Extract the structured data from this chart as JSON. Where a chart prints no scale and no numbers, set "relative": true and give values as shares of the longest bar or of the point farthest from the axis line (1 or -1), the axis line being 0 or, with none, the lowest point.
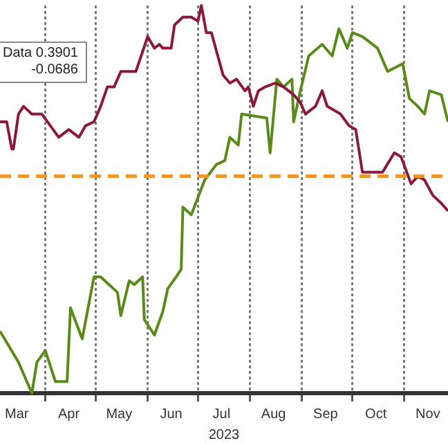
{
  "chart_data": {
    "type": "line",
    "relative": true,
    "xlabel": "2023",
    "grid": "x",
    "legend": false,
    "marker": "none",
    "line_style": "solid",
    "annotations": [
      "Data 0.3901",
      "-0.0686"
    ],
    "xlim": [
      "2023-03-05",
      "2023-11-27"
    ],
    "xticks": [
      {
        "value": "2023-03-15",
        "label": "Mar"
      },
      {
        "value": "2023-04-01",
        "label": null
      },
      {
        "value": "2023-04-15",
        "label": "Apr"
      },
      {
        "value": "2023-05-01",
        "label": null
      },
      {
        "value": "2023-05-15",
        "label": "May"
      },
      {
        "value": "2023-06-01",
        "label": null
      },
      {
        "value": "2023-06-15",
        "label": "Jun"
      },
      {
        "value": "2023-07-01",
        "label": null
      },
      {
        "value": "2023-07-15",
        "label": "Jul"
      },
      {
        "value": "2023-08-01",
        "label": null
      },
      {
        "value": "2023-08-15",
        "label": "Aug"
      },
      {
        "value": "2023-09-01",
        "label": null
      },
      {
        "value": "2023-09-15",
        "label": "Sep"
      },
      {
        "value": "2023-10-01",
        "label": null
      },
      {
        "value": "2023-10-15",
        "label": "Oct"
      },
      {
        "value": "2023-11-01",
        "label": null
      },
      {
        "value": "2023-11-15",
        "label": "Nov"
      }
    ],
    "ref_lines": [
      {
        "axis": "y",
        "value": 0.56,
        "color": "#f0962a",
        "line_style": "dashed"
      }
    ],
    "series": [
      {
        "color": "#8b1a3a",
        "x": [
          "2023-03-05",
          "2023-03-09",
          "2023-03-12",
          "2023-03-13",
          "2023-03-16",
          "2023-03-19",
          "2023-03-24",
          "2023-03-30",
          "2023-04-04",
          "2023-04-09",
          "2023-04-15",
          "2023-04-21",
          "2023-04-25",
          "2023-04-30",
          "2023-05-04",
          "2023-05-08",
          "2023-05-12",
          "2023-05-16",
          "2023-05-25",
          "2023-06-01",
          "2023-06-05",
          "2023-06-08",
          "2023-06-10",
          "2023-06-15",
          "2023-06-17",
          "2023-06-22",
          "2023-06-27",
          "2023-07-01",
          "2023-07-03",
          "2023-07-06",
          "2023-07-09",
          "2023-07-16",
          "2023-07-20",
          "2023-07-24",
          "2023-07-29",
          "2023-07-31",
          "2023-08-03",
          "2023-08-06",
          "2023-08-10",
          "2023-08-16",
          "2023-08-21",
          "2023-08-27",
          "2023-08-31",
          "2023-09-03",
          "2023-09-09",
          "2023-09-13",
          "2023-09-16",
          "2023-09-24",
          "2023-09-29",
          "2023-10-03",
          "2023-10-07",
          "2023-10-13",
          "2023-10-19",
          "2023-10-26",
          "2023-10-30",
          "2023-11-05",
          "2023-11-09",
          "2023-11-13",
          "2023-11-18",
          "2023-11-23",
          "2023-11-27"
        ],
        "values": [
          0.7,
          0.7,
          0.63,
          0.63,
          0.72,
          0.74,
          0.72,
          0.72,
          0.69,
          0.66,
          0.68,
          0.66,
          0.69,
          0.7,
          0.74,
          0.79,
          0.79,
          0.83,
          0.83,
          0.92,
          0.89,
          0.9,
          0.89,
          0.89,
          0.95,
          0.97,
          0.97,
          0.96,
          1.0,
          0.93,
          0.93,
          0.82,
          0.8,
          0.81,
          0.78,
          0.79,
          0.74,
          0.78,
          0.79,
          0.8,
          0.79,
          0.77,
          0.75,
          0.72,
          0.74,
          0.78,
          0.74,
          0.72,
          0.69,
          0.68,
          0.57,
          0.57,
          0.57,
          0.62,
          0.61,
          0.54,
          0.56,
          0.55,
          0.51,
          0.49,
          0.47
        ]
      },
      {
        "color": "#5a8a1a",
        "x": [
          "2023-03-05",
          "2023-03-16",
          "2023-03-24",
          "2023-03-27",
          "2023-04-01",
          "2023-04-07",
          "2023-04-14",
          "2023-04-16",
          "2023-04-23",
          "2023-04-30",
          "2023-05-04",
          "2023-05-14",
          "2023-05-16",
          "2023-05-21",
          "2023-05-24",
          "2023-05-29",
          "2023-05-30",
          "2023-06-05",
          "2023-06-10",
          "2023-06-13",
          "2023-06-18",
          "2023-06-21",
          "2023-06-22",
          "2023-06-27",
          "2023-07-05",
          "2023-07-12",
          "2023-07-17",
          "2023-07-20",
          "2023-07-25",
          "2023-07-27",
          "2023-08-11",
          "2023-08-13",
          "2023-08-17",
          "2023-08-21",
          "2023-08-26",
          "2023-08-27",
          "2023-08-31",
          "2023-09-05",
          "2023-09-13",
          "2023-09-19",
          "2023-09-23",
          "2023-09-28",
          "2023-10-01",
          "2023-10-07",
          "2023-10-16",
          "2023-10-22",
          "2023-10-31",
          "2023-11-04",
          "2023-11-09",
          "2023-11-13",
          "2023-11-16",
          "2023-11-23",
          "2023-11-27"
        ],
        "values": [
          0.16,
          0.08,
          0,
          0.08,
          0.11,
          0.03,
          0.03,
          0.22,
          0.14,
          0.3,
          0.3,
          0.26,
          0.2,
          0.29,
          0.28,
          0.3,
          0.19,
          0.15,
          0.21,
          0.27,
          0.3,
          0.32,
          0.48,
          0.46,
          0.55,
          0.59,
          0.6,
          0.66,
          0.64,
          0.72,
          0.71,
          0.62,
          0.81,
          0.79,
          0.81,
          0.7,
          0.78,
          0.87,
          0.9,
          0.87,
          0.94,
          0.89,
          0.93,
          0.92,
          0.89,
          0.83,
          0.85,
          0.76,
          0.74,
          0.72,
          0.78,
          0.77,
          0.7
        ]
      }
    ]
  }
}
